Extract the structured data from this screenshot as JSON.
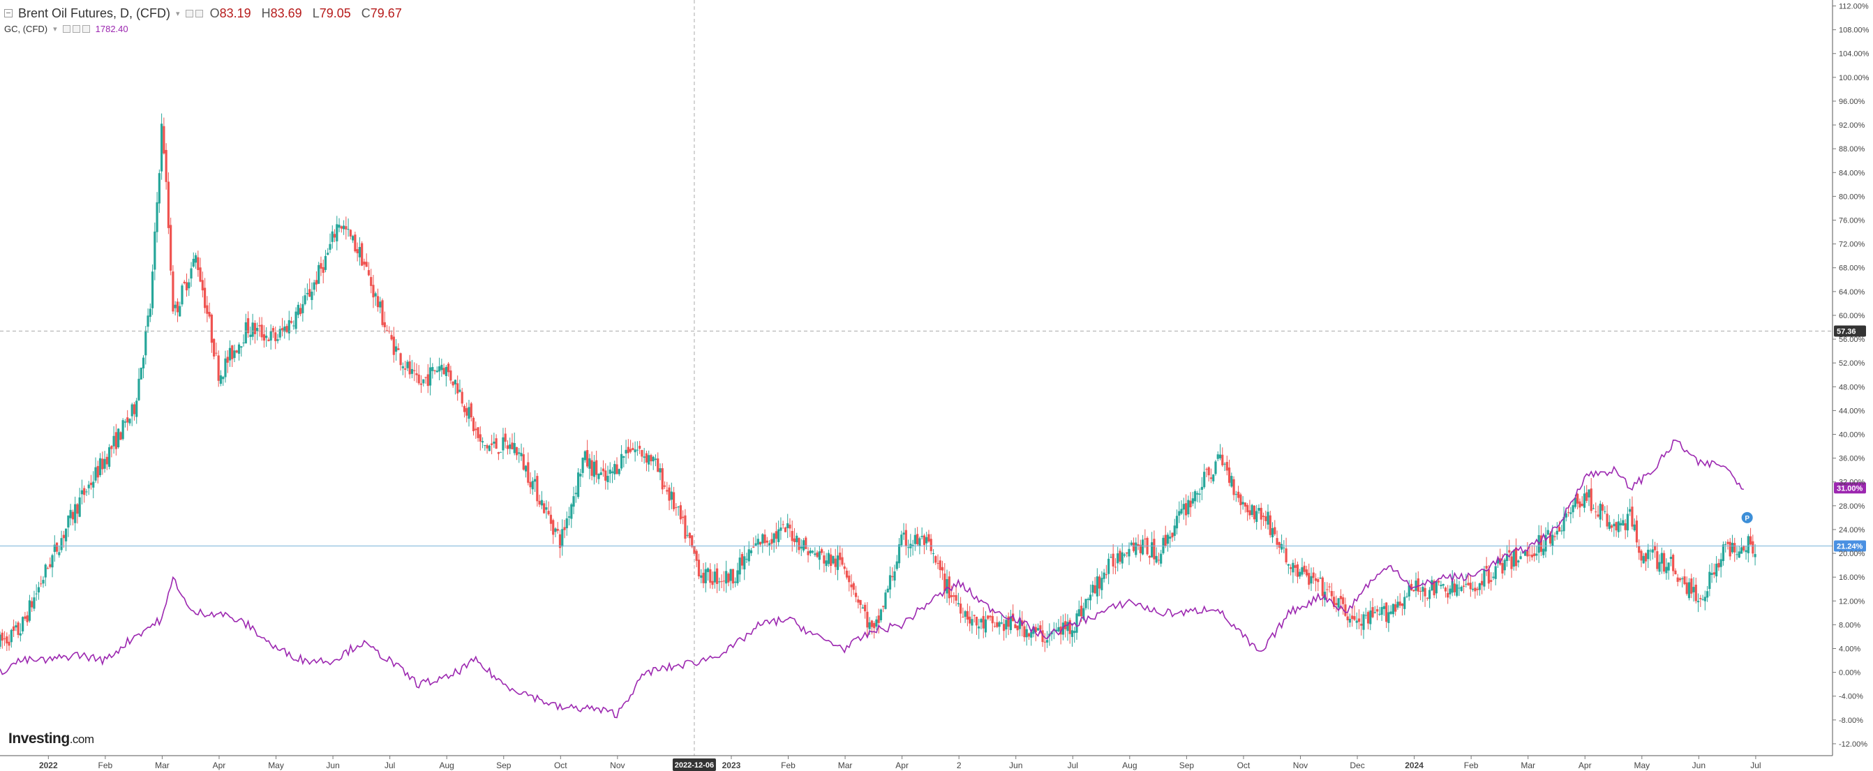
{
  "legend": {
    "symbol_title": "Brent Oil Futures, D, (CFD)",
    "ohlc": [
      {
        "label": "O",
        "value": "83.19"
      },
      {
        "label": "H",
        "value": "83.69"
      },
      {
        "label": "L",
        "value": "79.05"
      },
      {
        "label": "C",
        "value": "79.67"
      }
    ],
    "compare_title": "GC, (CFD)",
    "compare_value": "1782.40"
  },
  "logo": {
    "name": "Investing",
    "suffix": ".com"
  },
  "colors": {
    "up": "#26a69a",
    "down": "#ef5350",
    "compare_line": "#9c27b0",
    "brent_price_line": "#4a90e2",
    "crosshair": "#aaaaaa"
  },
  "crosshair": {
    "price_label": "57.36",
    "date_label": "2022-12-06"
  },
  "price_tags": {
    "compare": "31.00%",
    "brent": "21.24%"
  },
  "chart_data": {
    "type": "line",
    "y_unit": "% change",
    "y_range": [
      -14,
      113
    ],
    "y_ticks": [
      "112.00%",
      "108.00%",
      "104.00%",
      "100.00%",
      "96.00%",
      "92.00%",
      "88.00%",
      "84.00%",
      "80.00%",
      "76.00%",
      "72.00%",
      "68.00%",
      "64.00%",
      "60.00%",
      "56.00%",
      "52.00%",
      "48.00%",
      "44.00%",
      "40.00%",
      "36.00%",
      "32.00%",
      "28.00%",
      "24.00%",
      "20.00%",
      "16.00%",
      "12.00%",
      "8.00%",
      "4.00%",
      "0.00%",
      "-4.00%",
      "-8.00%",
      "-12.00%"
    ],
    "x_ticks": [
      {
        "label": "2022",
        "x": 0,
        "bold": true
      },
      {
        "label": "Feb",
        "x": 1
      },
      {
        "label": "Mar",
        "x": 2
      },
      {
        "label": "Apr",
        "x": 3
      },
      {
        "label": "May",
        "x": 4
      },
      {
        "label": "Jun",
        "x": 5
      },
      {
        "label": "Jul",
        "x": 6
      },
      {
        "label": "Aug",
        "x": 7
      },
      {
        "label": "Sep",
        "x": 8
      },
      {
        "label": "Oct",
        "x": 9
      },
      {
        "label": "Nov",
        "x": 10
      },
      {
        "label": "2023",
        "x": 12,
        "bold": true
      },
      {
        "label": "Feb",
        "x": 13
      },
      {
        "label": "Mar",
        "x": 14
      },
      {
        "label": "Apr",
        "x": 15
      },
      {
        "label": "2",
        "x": 16
      },
      {
        "label": "Jun",
        "x": 17
      },
      {
        "label": "Jul",
        "x": 18
      },
      {
        "label": "Aug",
        "x": 19
      },
      {
        "label": "Sep",
        "x": 20
      },
      {
        "label": "Oct",
        "x": 21
      },
      {
        "label": "Nov",
        "x": 22
      },
      {
        "label": "Dec",
        "x": 23
      },
      {
        "label": "2024",
        "x": 24,
        "bold": true
      },
      {
        "label": "Feb",
        "x": 25
      },
      {
        "label": "Mar",
        "x": 26
      },
      {
        "label": "Apr",
        "x": 27
      },
      {
        "label": "May",
        "x": 28
      },
      {
        "label": "Jun",
        "x": 29
      },
      {
        "label": "Jul",
        "x": 30
      }
    ],
    "x_domain": [
      -0.85,
      31.35
    ],
    "crosshair_x": 11.35,
    "crosshair_y": 57.36,
    "series": [
      {
        "name": "Brent Oil Futures, D, (CFD)",
        "style": "candles",
        "anchors": [
          [
            -0.85,
            5
          ],
          [
            -0.5,
            7
          ],
          [
            0,
            18
          ],
          [
            0.5,
            28
          ],
          [
            1,
            36
          ],
          [
            1.5,
            44
          ],
          [
            1.8,
            62
          ],
          [
            2.0,
            93
          ],
          [
            2.2,
            60
          ],
          [
            2.6,
            70
          ],
          [
            3.0,
            50
          ],
          [
            3.5,
            58
          ],
          [
            4.0,
            56
          ],
          [
            4.5,
            62
          ],
          [
            4.9,
            70
          ],
          [
            5.1,
            76
          ],
          [
            5.5,
            70
          ],
          [
            6.0,
            56
          ],
          [
            6.5,
            48
          ],
          [
            6.9,
            52
          ],
          [
            7.2,
            48
          ],
          [
            7.6,
            38
          ],
          [
            8.2,
            38
          ],
          [
            8.7,
            28
          ],
          [
            9.0,
            22
          ],
          [
            9.4,
            36
          ],
          [
            9.8,
            32
          ],
          [
            10.2,
            38
          ],
          [
            10.6,
            36
          ],
          [
            11.0,
            28
          ],
          [
            11.5,
            16
          ],
          [
            12.0,
            16
          ],
          [
            12.5,
            22
          ],
          [
            13.0,
            24
          ],
          [
            13.4,
            20
          ],
          [
            14.0,
            18
          ],
          [
            14.5,
            6
          ],
          [
            15.0,
            22
          ],
          [
            15.4,
            22
          ],
          [
            15.8,
            14
          ],
          [
            16.3,
            8
          ],
          [
            17.0,
            8
          ],
          [
            17.5,
            6
          ],
          [
            18.0,
            8
          ],
          [
            18.5,
            16
          ],
          [
            19.0,
            22
          ],
          [
            19.5,
            20
          ],
          [
            20.0,
            28
          ],
          [
            20.6,
            36
          ],
          [
            21.0,
            28
          ],
          [
            21.4,
            26
          ],
          [
            21.8,
            18
          ],
          [
            22.4,
            14
          ],
          [
            23.0,
            8
          ],
          [
            23.5,
            10
          ],
          [
            24.0,
            14
          ],
          [
            24.5,
            14
          ],
          [
            25.0,
            14
          ],
          [
            25.5,
            18
          ],
          [
            26.0,
            20
          ],
          [
            26.5,
            24
          ],
          [
            27.0,
            30
          ],
          [
            27.5,
            24
          ],
          [
            27.8,
            26
          ],
          [
            28.0,
            20
          ],
          [
            28.5,
            18
          ],
          [
            29.0,
            12
          ],
          [
            29.4,
            20
          ],
          [
            29.8,
            22
          ],
          [
            30.0,
            21.24
          ]
        ]
      },
      {
        "name": "GC, (CFD)",
        "style": "line",
        "anchors": [
          [
            -0.85,
            0
          ],
          [
            -0.5,
            2
          ],
          [
            0,
            2
          ],
          [
            0.5,
            3
          ],
          [
            1.0,
            2
          ],
          [
            1.5,
            6
          ],
          [
            2.0,
            9
          ],
          [
            2.2,
            16
          ],
          [
            2.5,
            10
          ],
          [
            3.0,
            10
          ],
          [
            3.5,
            8
          ],
          [
            4.0,
            4
          ],
          [
            4.5,
            2
          ],
          [
            5.0,
            2
          ],
          [
            5.5,
            5
          ],
          [
            6.0,
            2
          ],
          [
            6.5,
            -2
          ],
          [
            7.0,
            -1
          ],
          [
            7.5,
            2
          ],
          [
            8.0,
            -2
          ],
          [
            8.5,
            -4
          ],
          [
            9.0,
            -6
          ],
          [
            9.5,
            -6
          ],
          [
            10.0,
            -7
          ],
          [
            10.2,
            -4
          ],
          [
            10.5,
            0
          ],
          [
            11.0,
            1
          ],
          [
            11.5,
            2
          ],
          [
            12.0,
            4
          ],
          [
            12.5,
            8
          ],
          [
            13.0,
            9
          ],
          [
            13.5,
            6
          ],
          [
            14.0,
            4
          ],
          [
            14.5,
            7
          ],
          [
            15.0,
            8
          ],
          [
            15.5,
            12
          ],
          [
            16.0,
            15
          ],
          [
            16.5,
            11
          ],
          [
            17.0,
            9
          ],
          [
            17.5,
            6
          ],
          [
            18.0,
            8
          ],
          [
            18.5,
            10
          ],
          [
            19.0,
            12
          ],
          [
            19.5,
            10
          ],
          [
            20.0,
            10
          ],
          [
            20.5,
            11
          ],
          [
            21.0,
            6
          ],
          [
            21.3,
            3
          ],
          [
            21.8,
            10
          ],
          [
            22.4,
            13
          ],
          [
            22.8,
            10
          ],
          [
            23.2,
            15
          ],
          [
            23.6,
            18
          ],
          [
            24.0,
            14
          ],
          [
            24.5,
            16
          ],
          [
            25.0,
            16
          ],
          [
            25.5,
            19
          ],
          [
            26.0,
            21
          ],
          [
            26.5,
            24
          ],
          [
            27.0,
            33
          ],
          [
            27.5,
            34
          ],
          [
            27.8,
            31
          ],
          [
            28.2,
            34
          ],
          [
            28.6,
            39
          ],
          [
            29.0,
            35
          ],
          [
            29.4,
            35
          ],
          [
            29.8,
            31
          ]
        ]
      }
    ]
  }
}
